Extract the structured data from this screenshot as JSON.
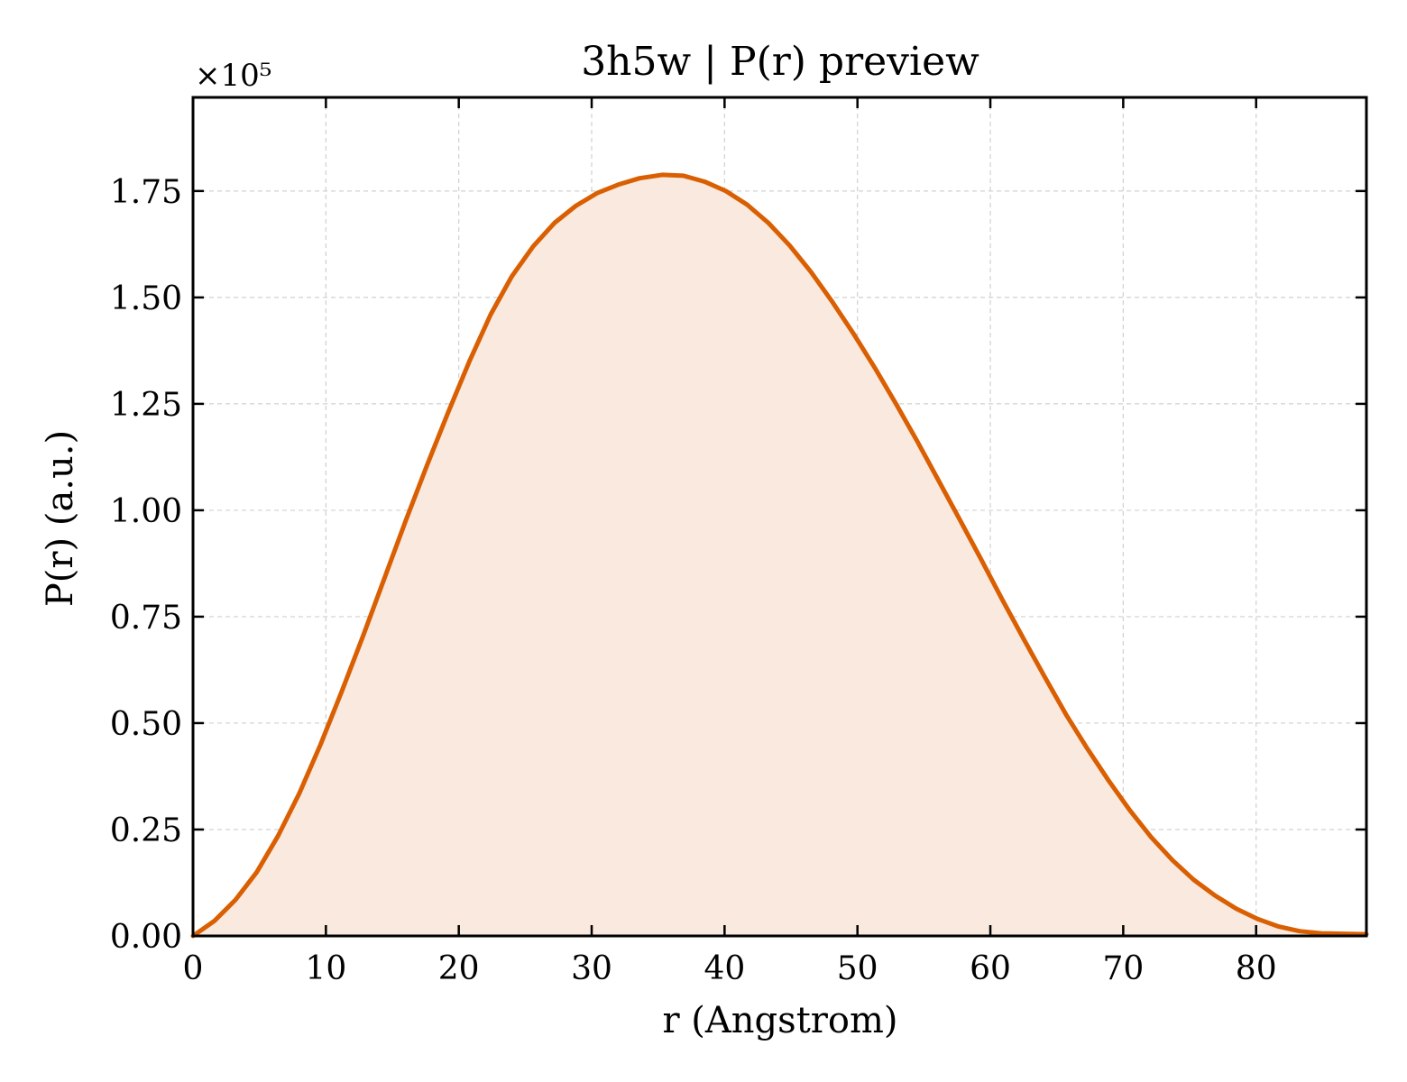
{
  "chart_data": {
    "type": "area",
    "title": "3h5w | P(r) preview",
    "xlabel": "r (Angstrom)",
    "ylabel": "P(r) (a.u.)",
    "y_scale_note": "×10⁵",
    "y_multiplier": 100000,
    "xlim": [
      0,
      88.3
    ],
    "ylim": [
      0,
      1.97
    ],
    "x_ticks": [
      0,
      10,
      20,
      30,
      40,
      50,
      60,
      70,
      80
    ],
    "x_tick_labels": [
      "0",
      "10",
      "20",
      "30",
      "40",
      "50",
      "60",
      "70",
      "80"
    ],
    "y_ticks": [
      0,
      0.25,
      0.5,
      0.75,
      1.0,
      1.25,
      1.5,
      1.75
    ],
    "y_tick_labels": [
      "0.00",
      "0.25",
      "0.50",
      "0.75",
      "1.00",
      "1.25",
      "1.50",
      "1.75"
    ],
    "grid": true,
    "line_color": "#d95f02",
    "fill_color": "#f9e9df",
    "series": [
      {
        "x": [
          0,
          1.6,
          3.2,
          4.8,
          6.4,
          8.0,
          9.6,
          11.2,
          12.8,
          14.4,
          16.0,
          17.6,
          19.2,
          20.8,
          22.4,
          24.0,
          25.6,
          27.2,
          28.8,
          30.4,
          32.0,
          33.6,
          35.3,
          36.9,
          38.5,
          40.1,
          41.7,
          43.3,
          44.9,
          46.5,
          48.1,
          49.7,
          51.3,
          52.9,
          54.5,
          56.1,
          57.7,
          59.3,
          60.9,
          62.5,
          64.1,
          65.7,
          67.3,
          68.9,
          70.5,
          72.1,
          73.7,
          75.3,
          76.9,
          78.5,
          80.1,
          81.7,
          83.3,
          84.9,
          86.5,
          88.3
        ],
        "values": [
          0.0,
          0.035,
          0.085,
          0.15,
          0.235,
          0.335,
          0.45,
          0.575,
          0.705,
          0.84,
          0.975,
          1.105,
          1.23,
          1.35,
          1.46,
          1.55,
          1.62,
          1.675,
          1.715,
          1.745,
          1.765,
          1.78,
          1.788,
          1.786,
          1.772,
          1.75,
          1.718,
          1.675,
          1.622,
          1.56,
          1.49,
          1.415,
          1.335,
          1.25,
          1.162,
          1.07,
          0.978,
          0.885,
          0.79,
          0.698,
          0.608,
          0.52,
          0.44,
          0.365,
          0.295,
          0.232,
          0.178,
          0.132,
          0.095,
          0.064,
          0.04,
          0.022,
          0.011,
          0.006,
          0.005,
          0.004
        ]
      }
    ]
  }
}
